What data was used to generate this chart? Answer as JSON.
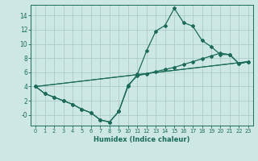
{
  "xlabel": "Humidex (Indice chaleur)",
  "bg_color": "#cde8e4",
  "grid_color": "#aaccc7",
  "line_color": "#1a6b5a",
  "xlim": [
    -0.5,
    23.5
  ],
  "ylim": [
    -1.5,
    15.5
  ],
  "xticks": [
    0,
    1,
    2,
    3,
    4,
    5,
    6,
    7,
    8,
    9,
    10,
    11,
    12,
    13,
    14,
    15,
    16,
    17,
    18,
    19,
    20,
    21,
    22,
    23
  ],
  "yticks": [
    0,
    2,
    4,
    6,
    8,
    10,
    12,
    14
  ],
  "ytick_labels": [
    "-0",
    "2",
    "4",
    "6",
    "8",
    "10",
    "12",
    "14"
  ],
  "curve1_x": [
    0,
    1,
    2,
    3,
    4,
    5,
    6,
    7,
    8,
    9,
    10,
    11,
    12,
    13,
    14,
    15,
    16,
    17,
    18,
    19,
    20,
    21,
    22,
    23
  ],
  "curve1_y": [
    4.0,
    3.0,
    2.5,
    2.0,
    1.5,
    0.8,
    0.3,
    -0.7,
    -1.0,
    0.5,
    4.0,
    5.7,
    9.0,
    11.8,
    12.6,
    15.0,
    13.0,
    12.5,
    10.5,
    9.6,
    8.5,
    8.5,
    7.2,
    7.5
  ],
  "curve2_x": [
    0,
    1,
    2,
    3,
    4,
    5,
    6,
    7,
    8,
    9,
    10,
    11,
    12,
    13,
    14,
    15,
    16,
    17,
    18,
    19,
    20,
    21,
    22,
    23
  ],
  "curve2_y": [
    4.0,
    3.0,
    2.5,
    2.0,
    1.5,
    0.8,
    0.3,
    -0.7,
    -1.0,
    0.5,
    4.2,
    5.5,
    5.8,
    6.1,
    6.4,
    6.7,
    7.1,
    7.5,
    7.9,
    8.3,
    8.7,
    8.5,
    7.2,
    7.5
  ],
  "line1_x": [
    0,
    23
  ],
  "line1_y": [
    4.0,
    7.5
  ],
  "line2_x": [
    0,
    23
  ],
  "line2_y": [
    4.0,
    7.5
  ]
}
